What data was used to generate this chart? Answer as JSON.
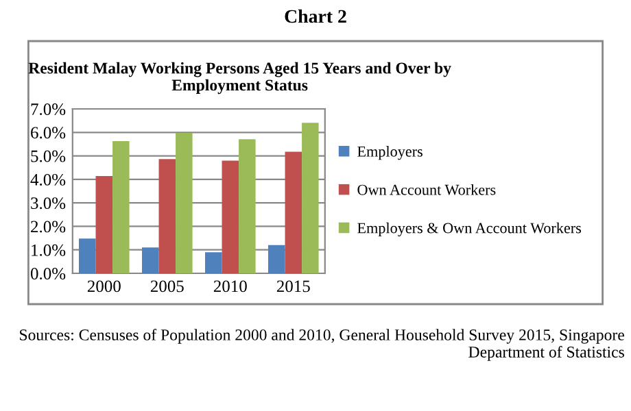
{
  "chart_data": {
    "type": "bar",
    "title": "Chart 2",
    "subtitle": "Resident Malay Working Persons Aged 15 Years and Over by Employment Status",
    "categories": [
      "2000",
      "2005",
      "2010",
      "2015"
    ],
    "series": [
      {
        "name": "Employers",
        "color": "#4f81bd",
        "values": [
          1.48,
          1.1,
          0.9,
          1.2
        ]
      },
      {
        "name": "Own Account Workers",
        "color": "#c0504d",
        "values": [
          4.14,
          4.86,
          4.8,
          5.18
        ]
      },
      {
        "name": "Employers & Own Account Workers",
        "color": "#9bbb59",
        "values": [
          5.63,
          5.98,
          5.71,
          6.41
        ]
      }
    ],
    "ylim": [
      0,
      7
    ],
    "yticks": [
      {
        "value": 0,
        "label": "0.0%"
      },
      {
        "value": 1,
        "label": "1.0%"
      },
      {
        "value": 2,
        "label": "2.0%"
      },
      {
        "value": 3,
        "label": "3.0%"
      },
      {
        "value": 4,
        "label": "4.0%"
      },
      {
        "value": 5,
        "label": "5.0%"
      },
      {
        "value": 6,
        "label": "6.0%"
      },
      {
        "value": 7,
        "label": "7.0%"
      }
    ],
    "grid": "y",
    "legend": "right",
    "annotations": [
      "Sources: Censuses of Population 2000 and 2010, General Household Survey 2015, Singapore Department of Statistics"
    ]
  }
}
